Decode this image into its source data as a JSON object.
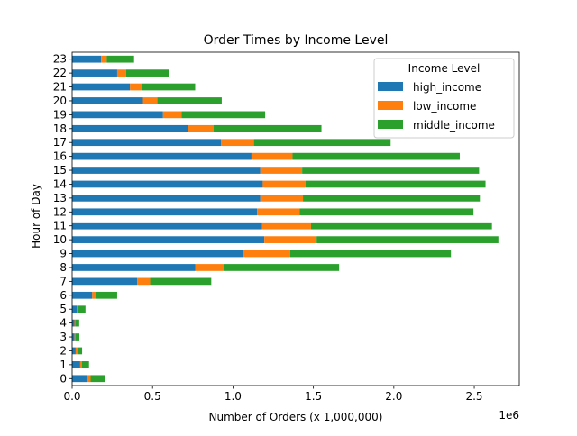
{
  "chart_data": {
    "type": "bar",
    "orientation": "horizontal",
    "stacked": true,
    "title": "Order Times by Income Level",
    "xlabel": "Number of Orders (x 1,000,000)",
    "ylabel": "Hour of Day",
    "x_offset_text": "1e6",
    "xlim": [
      0,
      2780000
    ],
    "x_ticks": [
      0,
      500000,
      1000000,
      1500000,
      2000000,
      2500000
    ],
    "x_tick_labels": [
      "0.0",
      "0.5",
      "1.0",
      "1.5",
      "2.0",
      "2.5"
    ],
    "grid": false,
    "legend": {
      "title": "Income Level",
      "position": "top-right"
    },
    "categories": [
      "0",
      "1",
      "2",
      "3",
      "4",
      "5",
      "6",
      "7",
      "8",
      "9",
      "10",
      "11",
      "12",
      "13",
      "14",
      "15",
      "16",
      "17",
      "18",
      "19",
      "20",
      "21",
      "22",
      "23"
    ],
    "series": [
      {
        "name": "high_income",
        "color": "#1f77b4",
        "values": [
          95000,
          50000,
          22000,
          15000,
          14000,
          30000,
          125000,
          405000,
          765000,
          1065000,
          1195000,
          1180000,
          1150000,
          1170000,
          1185000,
          1170000,
          1115000,
          925000,
          720000,
          565000,
          440000,
          360000,
          280000,
          180000
        ]
      },
      {
        "name": "low_income",
        "color": "#ff7f0e",
        "values": [
          20000,
          10000,
          10000,
          5000,
          5000,
          8000,
          25000,
          80000,
          175000,
          290000,
          325000,
          305000,
          265000,
          265000,
          265000,
          260000,
          255000,
          205000,
          160000,
          115000,
          90000,
          70000,
          55000,
          35000
        ]
      },
      {
        "name": "middle_income",
        "color": "#2ca02c",
        "values": [
          90000,
          45000,
          30000,
          25000,
          25000,
          45000,
          130000,
          380000,
          720000,
          1000000,
          1130000,
          1125000,
          1080000,
          1100000,
          1120000,
          1100000,
          1040000,
          850000,
          670000,
          520000,
          400000,
          335000,
          270000,
          170000
        ]
      }
    ]
  }
}
